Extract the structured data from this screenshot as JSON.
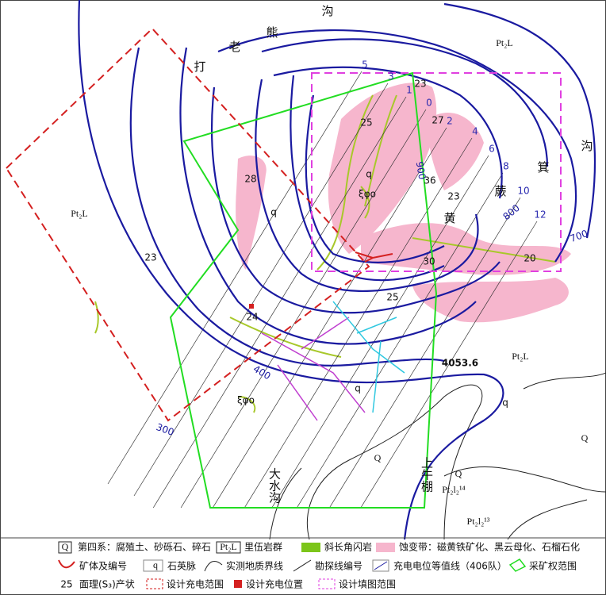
{
  "map": {
    "place_labels": [
      "沟",
      "熊",
      "老",
      "打",
      "箕",
      "蕨",
      "黄",
      "沟",
      "大水沟",
      "上牛棚"
    ],
    "unit_labels": [
      "Pt₂L",
      "Pt₂L",
      "Pt₂L",
      "Pt₂l₂¹⁴",
      "Pt₂l₂¹³"
    ],
    "quaternary_labels": [
      "Q",
      "Q",
      "Q"
    ],
    "rock_labels": [
      "q",
      "q",
      "q",
      "q",
      "ξφο",
      "ξφο"
    ],
    "attitudes": [
      "23",
      "25",
      "27",
      "28",
      "36",
      "23",
      "30",
      "20",
      "25",
      "24",
      "23"
    ],
    "elevation_point": "4053.6",
    "contour_labels": [
      "900",
      "800",
      "700",
      "400",
      "300"
    ],
    "exploration_lines": [
      "5",
      "3",
      "1",
      "0",
      "2",
      "4",
      "6",
      "8",
      "10",
      "12"
    ]
  },
  "legend": {
    "items": [
      {
        "symbol": "Q",
        "label": "第四系：腐殖土、砂砾石、碎石"
      },
      {
        "symbol": "Pt₂L",
        "label": "里伍岩群"
      },
      {
        "label": "斜长角闪岩"
      },
      {
        "label": "蚀变带：磁黄铁矿化、黑云母化、石榴石化"
      },
      {
        "label": "矿体及编号"
      },
      {
        "symbol": "q",
        "label": "石英脉"
      },
      {
        "label": "实测地质界线"
      },
      {
        "label": "勘探线编号"
      },
      {
        "label": "充电电位等值线（406队）"
      },
      {
        "label": "采矿权范围"
      },
      {
        "symbol": "25",
        "label": "面理(S₃)产状"
      },
      {
        "label": "设计充电范围"
      },
      {
        "label": "设计充电位置"
      },
      {
        "label": "设计填图范围"
      }
    ]
  }
}
